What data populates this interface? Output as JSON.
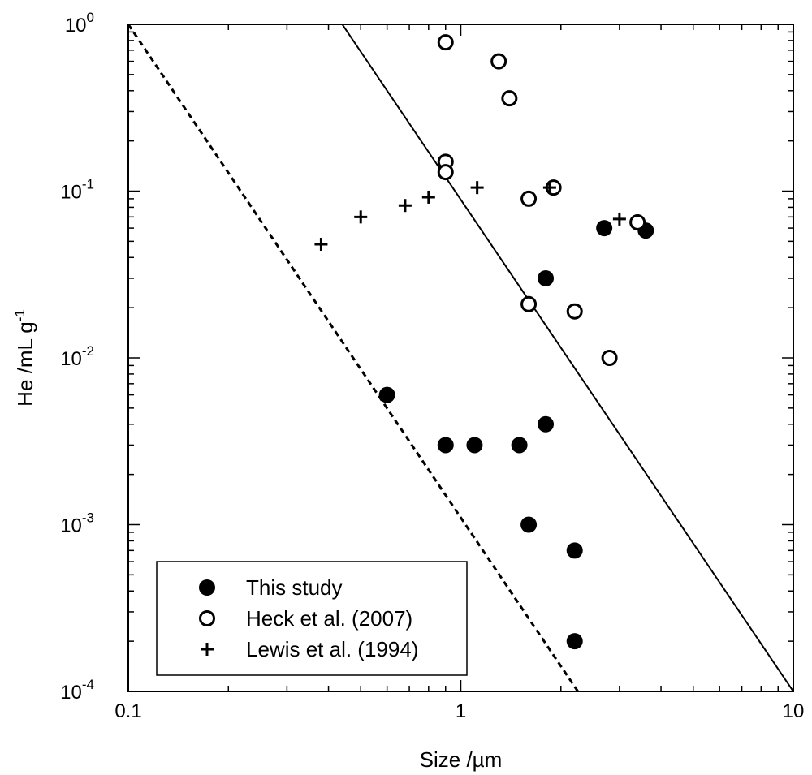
{
  "chart_data": {
    "type": "scatter",
    "title": "",
    "xlabel": "Size /µm",
    "ylabel": "He /mL g",
    "ylabel_exponent": "-1",
    "x_scale": "log",
    "y_scale": "log",
    "xlim": [
      0.1,
      10
    ],
    "ylim": [
      0.0001,
      1
    ],
    "grid": false,
    "legend_position": "bottom-left",
    "x_ticks": [
      {
        "value": 0.1,
        "label": "0.1"
      },
      {
        "value": 1,
        "label": "1"
      },
      {
        "value": 10,
        "label": "10"
      }
    ],
    "y_ticks": [
      {
        "value": 0.0001,
        "base": "10",
        "exp": "-4"
      },
      {
        "value": 0.001,
        "base": "10",
        "exp": "-3"
      },
      {
        "value": 0.01,
        "base": "10",
        "exp": "-2"
      },
      {
        "value": 0.1,
        "base": "10",
        "exp": "-1"
      },
      {
        "value": 1,
        "base": "10",
        "exp": "0"
      }
    ],
    "series": [
      {
        "name": "This study",
        "marker": "filled-circle",
        "color": "#000000",
        "points": [
          {
            "x": 0.6,
            "y": 0.006
          },
          {
            "x": 0.9,
            "y": 0.003
          },
          {
            "x": 1.1,
            "y": 0.003
          },
          {
            "x": 1.5,
            "y": 0.003
          },
          {
            "x": 1.8,
            "y": 0.004
          },
          {
            "x": 1.6,
            "y": 0.001
          },
          {
            "x": 2.2,
            "y": 0.0007
          },
          {
            "x": 2.2,
            "y": 0.0002
          },
          {
            "x": 1.8,
            "y": 0.03
          },
          {
            "x": 2.7,
            "y": 0.06
          },
          {
            "x": 3.6,
            "y": 0.058
          }
        ]
      },
      {
        "name": "Heck et al. (2007)",
        "marker": "open-circle",
        "color": "#000000",
        "points": [
          {
            "x": 0.9,
            "y": 0.78
          },
          {
            "x": 1.3,
            "y": 0.6
          },
          {
            "x": 1.4,
            "y": 0.36
          },
          {
            "x": 0.9,
            "y": 0.15
          },
          {
            "x": 0.9,
            "y": 0.13
          },
          {
            "x": 1.6,
            "y": 0.09
          },
          {
            "x": 1.9,
            "y": 0.105
          },
          {
            "x": 3.4,
            "y": 0.065
          },
          {
            "x": 1.6,
            "y": 0.021
          },
          {
            "x": 2.2,
            "y": 0.019
          },
          {
            "x": 2.8,
            "y": 0.01
          }
        ]
      },
      {
        "name": "Lewis et al. (1994)",
        "marker": "plus",
        "color": "#000000",
        "points": [
          {
            "x": 0.38,
            "y": 0.048
          },
          {
            "x": 0.5,
            "y": 0.07
          },
          {
            "x": 0.68,
            "y": 0.082
          },
          {
            "x": 0.8,
            "y": 0.092
          },
          {
            "x": 1.12,
            "y": 0.105
          },
          {
            "x": 1.85,
            "y": 0.105
          },
          {
            "x": 3.0,
            "y": 0.068
          }
        ]
      }
    ],
    "lines": [
      {
        "style": "solid",
        "points": [
          {
            "x": 0.44,
            "y": 1
          },
          {
            "x": 10,
            "y": 0.0001
          }
        ]
      },
      {
        "style": "dashed",
        "points": [
          {
            "x": 0.1,
            "y": 1
          },
          {
            "x": 2.25,
            "y": 0.0001
          }
        ]
      }
    ]
  }
}
